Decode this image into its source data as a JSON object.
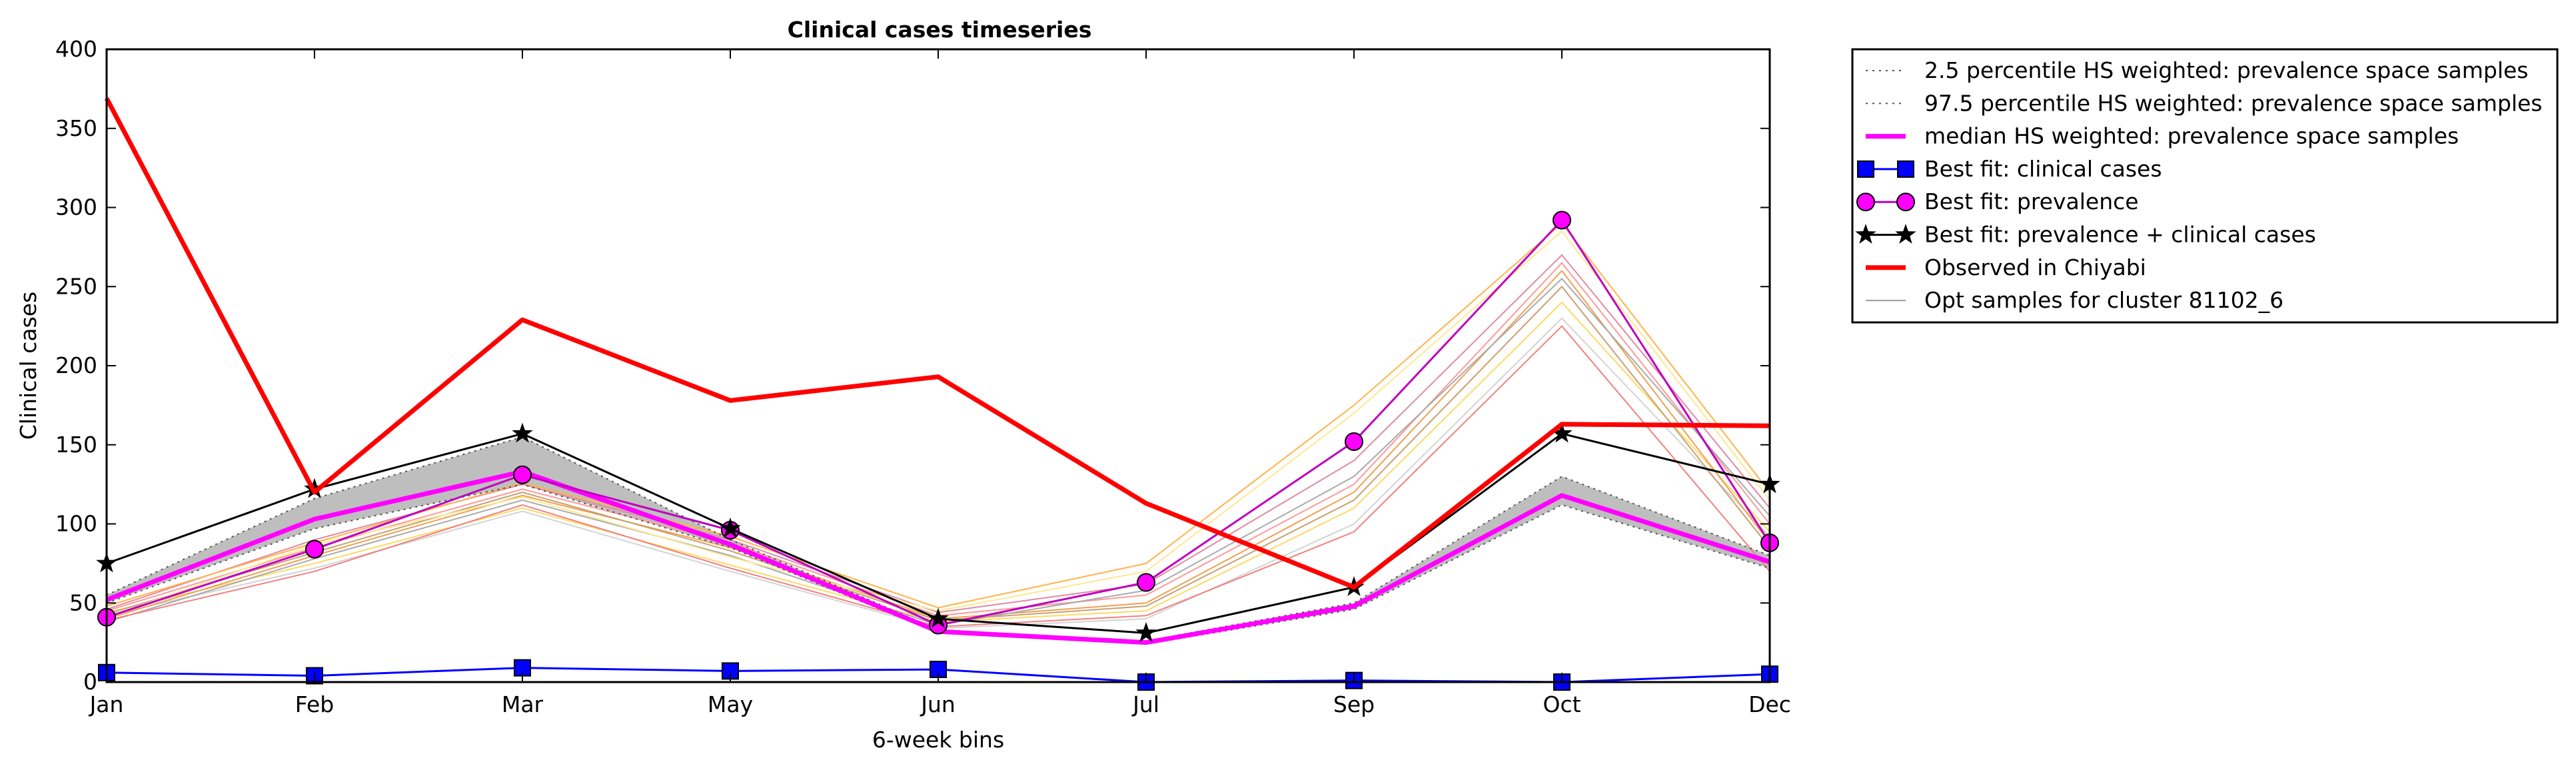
{
  "chart_data": {
    "type": "line",
    "title": "Clinical cases timeseries",
    "xlabel": "6-week bins",
    "ylabel": "Clinical cases",
    "categories": [
      "Jan",
      "Feb",
      "Mar",
      "May",
      "Jun",
      "Jul",
      "Sep",
      "Oct",
      "Dec"
    ],
    "ylim": [
      0,
      400
    ],
    "yticks": [
      "0",
      "50",
      "100",
      "150",
      "200",
      "250",
      "300",
      "350",
      "400"
    ],
    "grid": false,
    "legend_position": "outside-right",
    "band": {
      "lower": [
        50,
        97,
        125,
        85,
        31,
        24,
        46,
        112,
        72
      ],
      "upper": [
        55,
        116,
        155,
        90,
        33,
        26,
        50,
        130,
        80
      ],
      "color": "#bebebe"
    },
    "sample_lines": [
      {
        "values": [
          42,
          72,
          108,
          70,
          34,
          40,
          100,
          230,
          92
        ],
        "color": "#d4d4d4"
      },
      {
        "values": [
          44,
          75,
          110,
          74,
          38,
          45,
          110,
          240,
          95
        ],
        "color": "#ffd966"
      },
      {
        "values": [
          40,
          80,
          118,
          85,
          40,
          50,
          120,
          260,
          88
        ],
        "color": "#f0a050"
      },
      {
        "values": [
          45,
          85,
          122,
          88,
          42,
          55,
          125,
          265,
          100
        ],
        "color": "#ff9999"
      },
      {
        "values": [
          38,
          78,
          115,
          80,
          36,
          58,
          130,
          255,
          105
        ],
        "color": "#aaaaaa"
      },
      {
        "values": [
          46,
          90,
          125,
          90,
          44,
          62,
          140,
          270,
          110
        ],
        "color": "#e08aa0"
      },
      {
        "values": [
          43,
          82,
          120,
          83,
          39,
          48,
          115,
          250,
          85
        ],
        "color": "#c8a070"
      },
      {
        "values": [
          41,
          87,
          117,
          79,
          45,
          70,
          170,
          285,
          115
        ],
        "color": "#ffe890"
      },
      {
        "values": [
          48,
          88,
          126,
          92,
          47,
          75,
          175,
          290,
          120
        ],
        "color": "#ffb347"
      },
      {
        "values": [
          39,
          70,
          112,
          72,
          35,
          42,
          95,
          225,
          70
        ],
        "color": "#f08080"
      }
    ],
    "series": [
      {
        "name": "2.5 percentile HS weighted: prevalence space samples",
        "values": [
          50,
          97,
          125,
          85,
          31,
          24,
          46,
          112,
          72
        ],
        "color": "#555555",
        "style": "dotted"
      },
      {
        "name": "97.5 percentile HS weighted: prevalence space samples",
        "values": [
          55,
          116,
          155,
          90,
          33,
          26,
          50,
          130,
          80
        ],
        "color": "#555555",
        "style": "dotted"
      },
      {
        "name": "median HS weighted: prevalence space samples",
        "values": [
          52,
          103,
          133,
          87,
          32,
          25,
          48,
          118,
          76
        ],
        "color": "#ff00ff",
        "style": "thick"
      },
      {
        "name": "Best fit: clinical cases",
        "values": [
          6,
          4,
          9,
          7,
          8,
          0,
          1,
          0,
          5
        ],
        "color": "#0000ff",
        "marker": "square"
      },
      {
        "name": "Best fit: prevalence",
        "values": [
          41,
          84,
          131,
          96,
          36,
          63,
          152,
          292,
          88
        ],
        "color": "#bf00bf",
        "marker": "circle",
        "markerColor": "#ff00ff"
      },
      {
        "name": "Best fit: prevalence + clinical cases",
        "values": [
          75,
          122,
          157,
          97,
          40,
          31,
          60,
          157,
          125
        ],
        "color": "#000000",
        "marker": "star"
      },
      {
        "name": "Observed in Chiyabi",
        "values": [
          369,
          120,
          229,
          178,
          193,
          113,
          60,
          163,
          162
        ],
        "color": "#ff0000",
        "style": "thick"
      },
      {
        "name": "Opt samples for cluster 81102_6",
        "color": "#999999",
        "style": "thin"
      }
    ]
  }
}
